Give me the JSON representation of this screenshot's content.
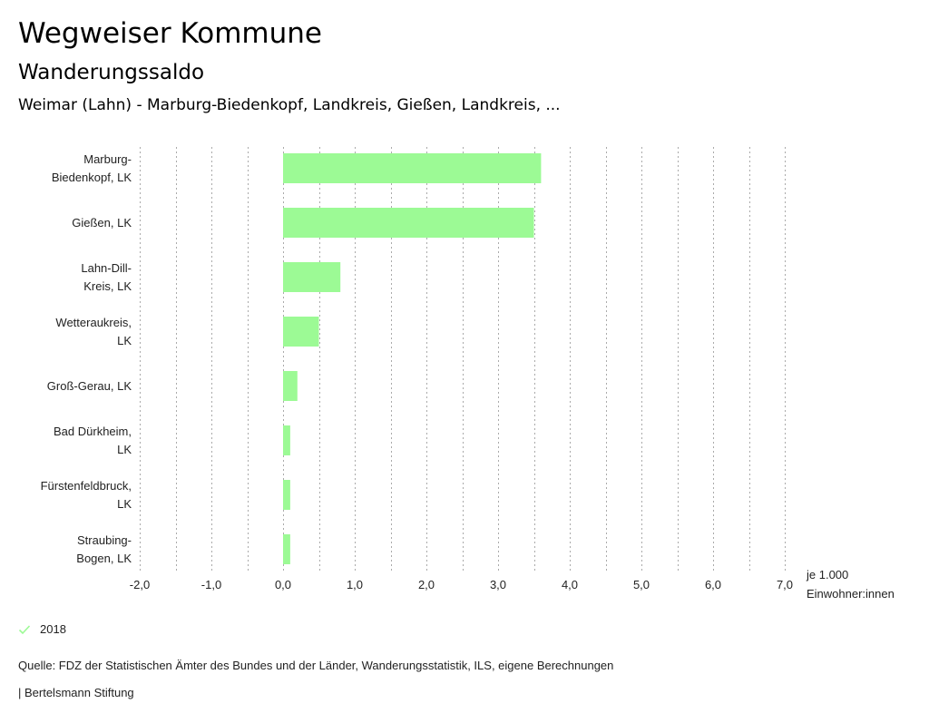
{
  "header": {
    "title": "Wegweiser Kommune",
    "subtitle": "Wanderungssaldo",
    "selection": "Weimar (Lahn) - Marburg-Biedenkopf, Landkreis, Gießen, Landkreis, ..."
  },
  "chart_data": {
    "type": "bar",
    "orientation": "horizontal",
    "title": "Wanderungssaldo",
    "xlabel": "je 1.000 Einwohner:innen",
    "xlabel_lines": [
      "je 1.000",
      "Einwohner:innen"
    ],
    "ylabel": "",
    "xlim": [
      -2.0,
      7.0
    ],
    "x_ticks": [
      -2.0,
      -1.0,
      0.0,
      1.0,
      2.0,
      3.0,
      4.0,
      5.0,
      6.0,
      7.0
    ],
    "x_tick_labels": [
      "-2,0",
      "-1,0",
      "0,0",
      "1,0",
      "2,0",
      "3,0",
      "4,0",
      "5,0",
      "6,0",
      "7,0"
    ],
    "grid_step": 0.5,
    "grid": true,
    "categories": [
      [
        "Marburg-",
        "Biedenkopf, LK"
      ],
      [
        "Gießen, LK"
      ],
      [
        "Lahn-Dill-",
        "Kreis, LK"
      ],
      [
        "Wetteraukreis,",
        "LK"
      ],
      [
        "Groß-Gerau, LK"
      ],
      [
        "Bad Dürkheim,",
        "LK"
      ],
      [
        "Fürstenfeldbruck,",
        "LK"
      ],
      [
        "Straubing-",
        "Bogen, LK"
      ]
    ],
    "series": [
      {
        "name": "2018",
        "color": "#9cfa95",
        "values": [
          3.6,
          3.5,
          0.8,
          0.5,
          0.2,
          0.1,
          0.1,
          0.1
        ]
      }
    ],
    "legend_position": "bottom-left"
  },
  "legend": {
    "label": "2018",
    "icon": "check-icon",
    "color": "#9cfa95"
  },
  "footer": {
    "source": "Quelle: FDZ der Statistischen Ämter des Bundes und der Länder, Wanderungsstatistik, ILS, eigene Berechnungen",
    "brand": "| Bertelsmann Stiftung"
  }
}
